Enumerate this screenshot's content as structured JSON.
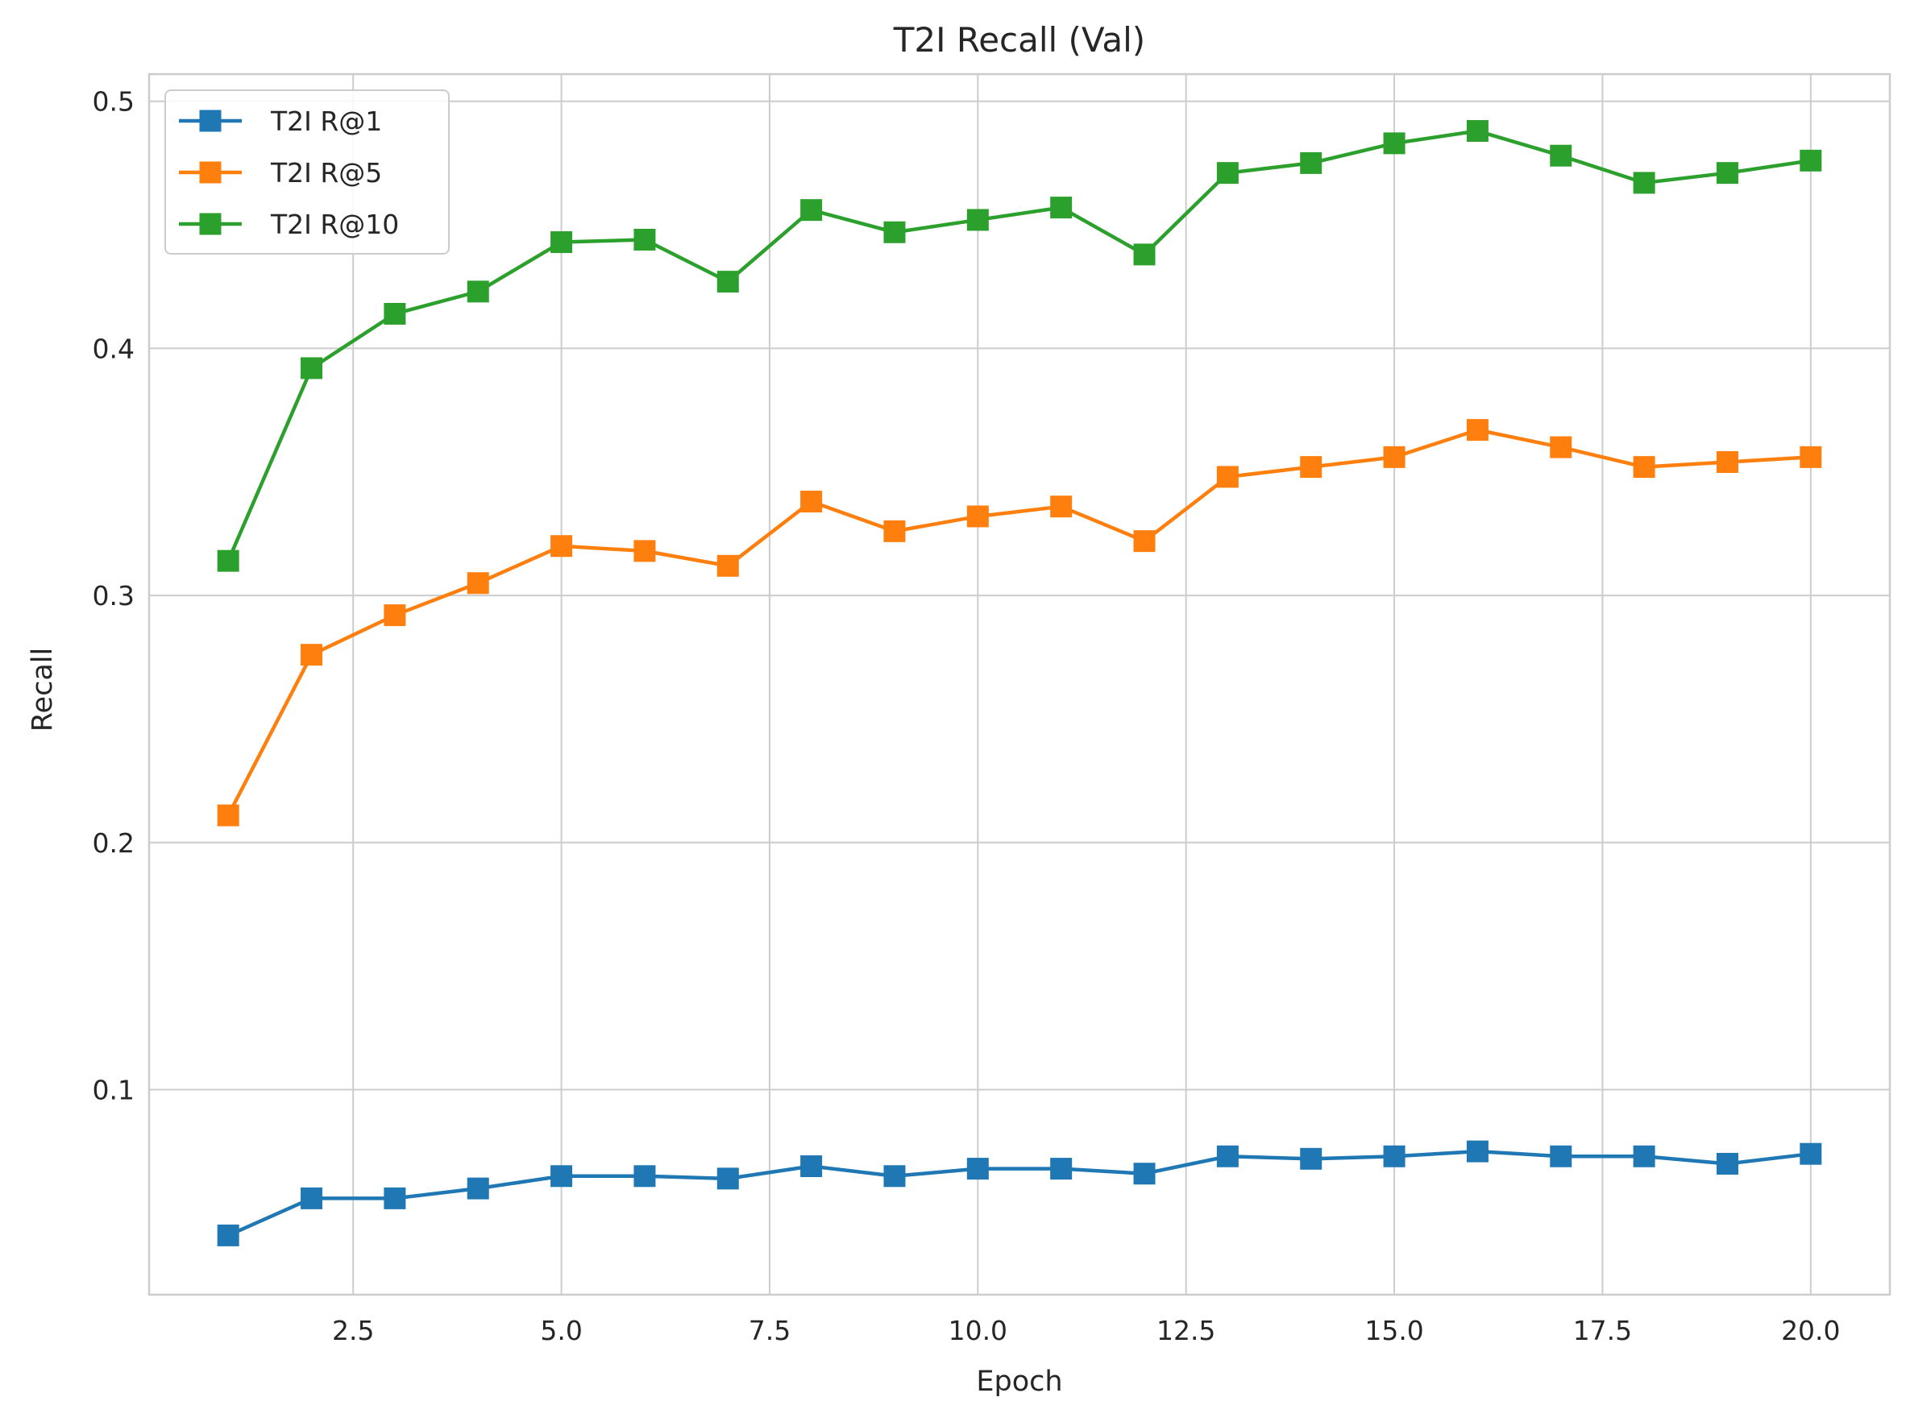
{
  "chart_data": {
    "type": "line",
    "title": "T2I Recall (Val)",
    "xlabel": "Epoch",
    "ylabel": "Recall",
    "xlim": [
      0.05,
      20.95
    ],
    "ylim": [
      0.017,
      0.511
    ],
    "xticks": [
      2.5,
      5.0,
      7.5,
      10.0,
      12.5,
      15.0,
      17.5,
      20.0
    ],
    "xtick_labels": [
      "2.5",
      "5.0",
      "7.5",
      "10.0",
      "12.5",
      "15.0",
      "17.5",
      "20.0"
    ],
    "yticks": [
      0.1,
      0.2,
      0.3,
      0.4,
      0.5
    ],
    "ytick_labels": [
      "0.1",
      "0.2",
      "0.3",
      "0.4",
      "0.5"
    ],
    "grid": true,
    "legend_position": "top-left",
    "marker": "square",
    "x": [
      1,
      2,
      3,
      4,
      5,
      6,
      7,
      8,
      9,
      10,
      11,
      12,
      13,
      14,
      15,
      16,
      17,
      18,
      19,
      20
    ],
    "series": [
      {
        "name": "T2I R@1",
        "color": "#1f77b4",
        "values": [
          0.041,
          0.056,
          0.056,
          0.06,
          0.065,
          0.065,
          0.064,
          0.069,
          0.065,
          0.068,
          0.068,
          0.066,
          0.073,
          0.072,
          0.073,
          0.075,
          0.073,
          0.073,
          0.07,
          0.074
        ]
      },
      {
        "name": "T2I R@5",
        "color": "#ff7f0e",
        "values": [
          0.211,
          0.276,
          0.292,
          0.305,
          0.32,
          0.318,
          0.312,
          0.338,
          0.326,
          0.332,
          0.336,
          0.322,
          0.348,
          0.352,
          0.356,
          0.367,
          0.36,
          0.352,
          0.354,
          0.356
        ]
      },
      {
        "name": "T2I R@10",
        "color": "#2ca02c",
        "values": [
          0.314,
          0.392,
          0.414,
          0.423,
          0.443,
          0.444,
          0.427,
          0.456,
          0.447,
          0.452,
          0.457,
          0.438,
          0.471,
          0.475,
          0.483,
          0.488,
          0.478,
          0.467,
          0.471,
          0.476
        ]
      }
    ]
  }
}
